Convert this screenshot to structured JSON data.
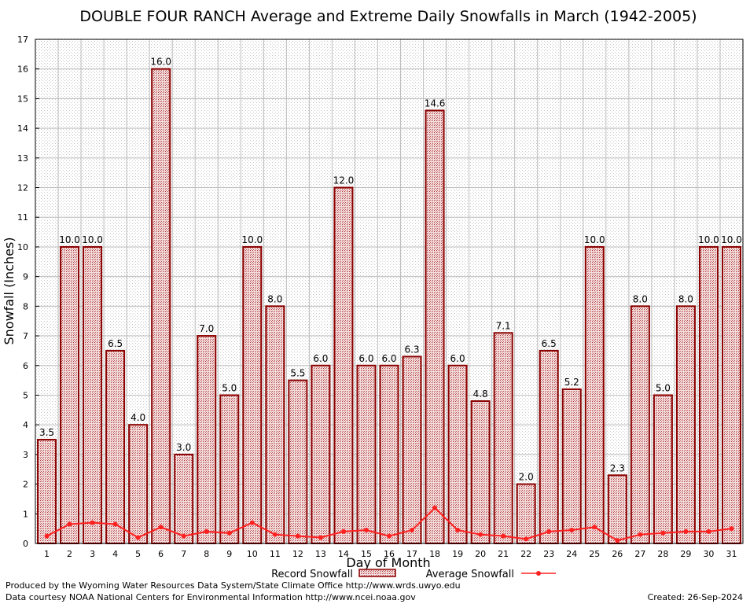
{
  "chart_data": {
    "type": "bar",
    "title": "DOUBLE FOUR RANCH Average and Extreme Daily Snowfalls in March (1942-2005)",
    "xlabel": "Day of Month",
    "ylabel": "Snowfall (Inches)",
    "ylim": [
      0,
      17
    ],
    "yticks": [
      "0",
      "1",
      "2",
      "3",
      "4",
      "5",
      "6",
      "7",
      "8",
      "9",
      "10",
      "11",
      "12",
      "13",
      "14",
      "15",
      "16",
      "17"
    ],
    "categories": [
      "1",
      "2",
      "3",
      "4",
      "5",
      "6",
      "7",
      "8",
      "9",
      "10",
      "11",
      "12",
      "13",
      "14",
      "15",
      "16",
      "17",
      "18",
      "19",
      "20",
      "21",
      "22",
      "23",
      "24",
      "25",
      "26",
      "27",
      "28",
      "29",
      "30",
      "31"
    ],
    "series": [
      {
        "name": "Record Snowfall",
        "type": "bar",
        "color": "#8b0000",
        "values": [
          3.5,
          10.0,
          10.0,
          6.5,
          4.0,
          16.0,
          3.0,
          7.0,
          5.0,
          10.0,
          8.0,
          5.5,
          6.0,
          12.0,
          6.0,
          6.0,
          6.3,
          14.6,
          6.0,
          4.8,
          7.1,
          2.0,
          6.5,
          5.2,
          10.0,
          2.3,
          8.0,
          5.0,
          8.0,
          10.0,
          10.0
        ],
        "labels": [
          "3.5",
          "10.0",
          "10.0",
          "6.5",
          "4.0",
          "16.0",
          "3.0",
          "7.0",
          "5.0",
          "10.0",
          "8.0",
          "5.5",
          "6.0",
          "12.0",
          "6.0",
          "6.0",
          "6.3",
          "14.6",
          "6.0",
          "4.8",
          "7.1",
          "2.0",
          "6.5",
          "5.2",
          "10.0",
          "2.3",
          "8.0",
          "5.0",
          "8.0",
          "10.0",
          "10.0"
        ]
      },
      {
        "name": "Average Snowfall",
        "type": "line",
        "color": "#ff2020",
        "values": [
          0.25,
          0.65,
          0.7,
          0.65,
          0.2,
          0.55,
          0.25,
          0.4,
          0.35,
          0.7,
          0.3,
          0.25,
          0.2,
          0.4,
          0.45,
          0.25,
          0.45,
          1.2,
          0.45,
          0.3,
          0.25,
          0.15,
          0.4,
          0.45,
          0.55,
          0.1,
          0.3,
          0.35,
          0.4,
          0.4,
          0.5
        ]
      }
    ],
    "grid": true,
    "legend_placement": "bottom"
  },
  "footer": {
    "produced_by": "Produced by the Wyoming Water Resources Data System/State Climate Office http://www.wrds.uwyo.edu",
    "courtesy": "Data courtesy NOAA National Centers for Environmental Information http://www.ncei.noaa.gov",
    "created": "Created:  26-Sep-2024"
  }
}
